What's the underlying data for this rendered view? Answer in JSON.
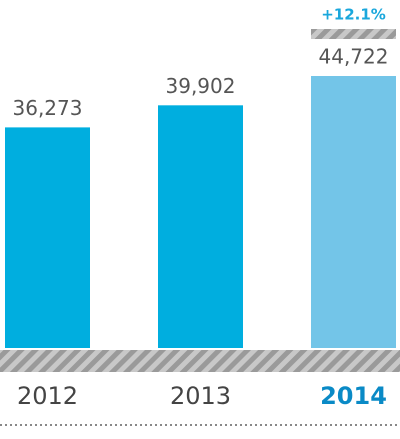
{
  "chart_data": {
    "type": "bar",
    "categories": [
      "2012",
      "2013",
      "2014"
    ],
    "values": [
      36273,
      39902,
      44722
    ],
    "value_labels": [
      "36,273",
      "39,902",
      "44,722"
    ],
    "colors": [
      "#00aedf",
      "#00aedf",
      "#73c5e8"
    ],
    "highlight_color": "#0a8ac6",
    "annotation": "+12.1%"
  }
}
